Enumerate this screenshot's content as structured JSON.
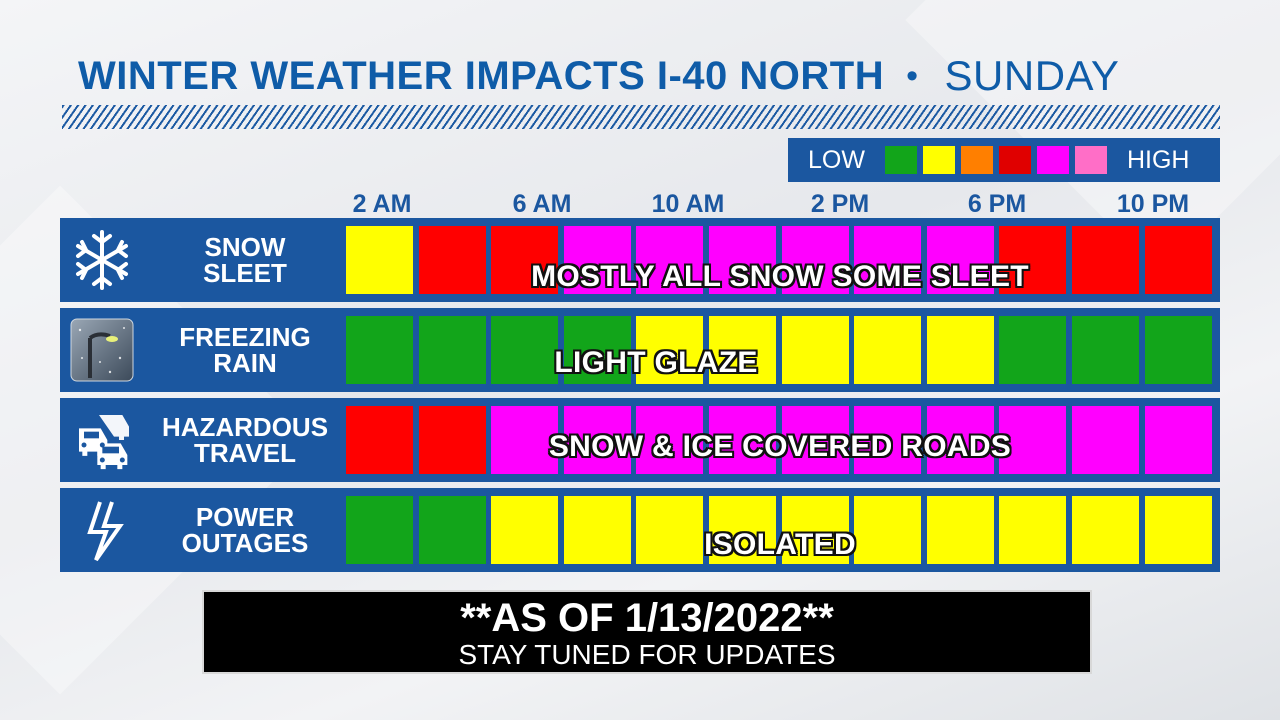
{
  "title": {
    "main": "WINTER WEATHER IMPACTS I-40 NORTH",
    "separator": "•",
    "day": "SUNDAY"
  },
  "legend": {
    "low_label": "LOW",
    "high_label": "HIGH",
    "swatches": [
      "#12a51a",
      "#ffff00",
      "#ff7f00",
      "#e00000",
      "#ff00ff",
      "#ff6ec7"
    ]
  },
  "hours": [
    "2 AM",
    "6 AM",
    "10 AM",
    "2 PM",
    "6 PM",
    "10 PM"
  ],
  "rows": [
    {
      "label_line1": "SNOW",
      "label_line2": "SLEET",
      "icon": "snowflake-icon",
      "cells": [
        "#ffff00",
        "#ff0000",
        "#ff0000",
        "#ff00ff",
        "#ff00ff",
        "#ff00ff",
        "#ff00ff",
        "#ff00ff",
        "#ff00ff",
        "#ff0000",
        "#ff0000",
        "#ff0000"
      ],
      "note": "MOSTLY ALL SNOW SOME SLEET"
    },
    {
      "label_line1": "FREEZING",
      "label_line2": "RAIN",
      "icon": "icy-streetlight-icon",
      "cells": [
        "#12a51a",
        "#12a51a",
        "#12a51a",
        "#12a51a",
        "#ffff00",
        "#ffff00",
        "#ffff00",
        "#ffff00",
        "#ffff00",
        "#12a51a",
        "#12a51a",
        "#12a51a"
      ],
      "note": "LIGHT GLAZE"
    },
    {
      "label_line1": "HAZARDOUS",
      "label_line2": "TRAVEL",
      "icon": "cars-icon",
      "cells": [
        "#ff0000",
        "#ff0000",
        "#ff00ff",
        "#ff00ff",
        "#ff00ff",
        "#ff00ff",
        "#ff00ff",
        "#ff00ff",
        "#ff00ff",
        "#ff00ff",
        "#ff00ff",
        "#ff00ff"
      ],
      "note": "SNOW & ICE COVERED ROADS"
    },
    {
      "label_line1": "POWER",
      "label_line2": "OUTAGES",
      "icon": "lightning-icon",
      "cells": [
        "#12a51a",
        "#12a51a",
        "#ffff00",
        "#ffff00",
        "#ffff00",
        "#ffff00",
        "#ffff00",
        "#ffff00",
        "#ffff00",
        "#ffff00",
        "#ffff00",
        "#ffff00"
      ],
      "note": "ISOLATED"
    }
  ],
  "footer": {
    "line1": "**AS OF 1/13/2022**",
    "line2": "STAY TUNED FOR UPDATES"
  }
}
